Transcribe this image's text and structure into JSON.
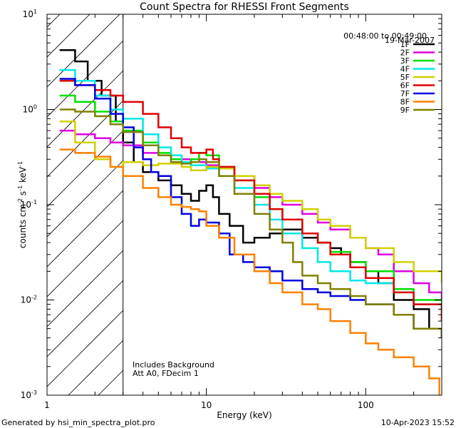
{
  "chart_data": {
    "type": "line",
    "title": "Count Spectra for RHESSI Front Segments",
    "xlabel": "Energy (keV)",
    "ylabel_parts": {
      "base": "counts cm",
      "exp1": "-2",
      "mid": " s",
      "exp2": "-1",
      "unit": " keV",
      "exp3": "-1"
    },
    "xscale": "log",
    "yscale": "log",
    "xlim": [
      1,
      300
    ],
    "ylim": [
      0.001,
      10
    ],
    "x_ticks": [
      {
        "value": 1,
        "label": "1"
      },
      {
        "value": 10,
        "label": "10"
      },
      {
        "value": 100,
        "label": "100"
      }
    ],
    "y_ticks": [
      {
        "value": 0.001,
        "base": "10",
        "exp": "-3"
      },
      {
        "value": 0.01,
        "base": "10",
        "exp": "-2"
      },
      {
        "value": 0.1,
        "base": "10",
        "exp": "-1"
      },
      {
        "value": 1,
        "base": "10",
        "exp": "0"
      },
      {
        "value": 10,
        "base": "10",
        "exp": "1"
      }
    ],
    "date": "19-Mar-2007",
    "time_range": "00:48:00 to 00:49:00",
    "annotations": [
      "Includes Background",
      "Att A0, FDecim 1"
    ],
    "shaded_region_xmax": 3,
    "legend_position": "top-right",
    "series": [
      {
        "name": "1F",
        "color": "#000000",
        "points": [
          [
            1.2,
            4.2
          ],
          [
            1.5,
            3.2
          ],
          [
            1.8,
            2.0
          ],
          [
            2.2,
            1.4
          ],
          [
            2.7,
            0.75
          ],
          [
            3.0,
            0.45
          ],
          [
            3.5,
            0.28
          ],
          [
            4,
            0.22
          ],
          [
            5,
            0.18
          ],
          [
            6,
            0.16
          ],
          [
            7,
            0.13
          ],
          [
            8,
            0.11
          ],
          [
            9,
            0.14
          ],
          [
            10,
            0.16
          ],
          [
            11,
            0.12
          ],
          [
            12,
            0.08
          ],
          [
            14,
            0.06
          ],
          [
            17,
            0.04
          ],
          [
            20,
            0.045
          ],
          [
            25,
            0.05
          ],
          [
            30,
            0.055
          ],
          [
            40,
            0.045
          ],
          [
            50,
            0.04
          ],
          [
            60,
            0.035
          ],
          [
            70,
            0.03
          ],
          [
            80,
            0.025
          ],
          [
            100,
            0.02
          ],
          [
            120,
            0.015
          ],
          [
            150,
            0.01
          ],
          [
            200,
            0.008
          ],
          [
            250,
            0.005
          ],
          [
            300,
            0.004
          ]
        ]
      },
      {
        "name": "2F",
        "color": "#e000e0",
        "points": [
          [
            1.2,
            0.6
          ],
          [
            1.5,
            0.55
          ],
          [
            2,
            0.5
          ],
          [
            2.5,
            0.45
          ],
          [
            3,
            0.42
          ],
          [
            4,
            0.35
          ],
          [
            5,
            0.33
          ],
          [
            6,
            0.3
          ],
          [
            7,
            0.3
          ],
          [
            8,
            0.28
          ],
          [
            10,
            0.26
          ],
          [
            12,
            0.24
          ],
          [
            15,
            0.2
          ],
          [
            20,
            0.15
          ],
          [
            25,
            0.12
          ],
          [
            30,
            0.1
          ],
          [
            40,
            0.08
          ],
          [
            50,
            0.065
          ],
          [
            60,
            0.055
          ],
          [
            80,
            0.045
          ],
          [
            100,
            0.035
          ],
          [
            120,
            0.03
          ],
          [
            150,
            0.02
          ],
          [
            200,
            0.015
          ],
          [
            250,
            0.012
          ],
          [
            300,
            0.01
          ]
        ]
      },
      {
        "name": "3F",
        "color": "#00e000",
        "points": [
          [
            1.2,
            1.4
          ],
          [
            1.5,
            1.2
          ],
          [
            2,
            0.95
          ],
          [
            2.5,
            0.75
          ],
          [
            3,
            0.6
          ],
          [
            4,
            0.45
          ],
          [
            5,
            0.35
          ],
          [
            6,
            0.3
          ],
          [
            7,
            0.28
          ],
          [
            8,
            0.3
          ],
          [
            9,
            0.35
          ],
          [
            10,
            0.33
          ],
          [
            12,
            0.25
          ],
          [
            15,
            0.18
          ],
          [
            20,
            0.12
          ],
          [
            25,
            0.09
          ],
          [
            30,
            0.07
          ],
          [
            40,
            0.05
          ],
          [
            50,
            0.04
          ],
          [
            60,
            0.032
          ],
          [
            80,
            0.025
          ],
          [
            100,
            0.02
          ],
          [
            150,
            0.013
          ],
          [
            200,
            0.01
          ],
          [
            300,
            0.006
          ]
        ]
      },
      {
        "name": "4F",
        "color": "#00e8e8",
        "points": [
          [
            1.2,
            2.6
          ],
          [
            1.5,
            2.0
          ],
          [
            2,
            1.4
          ],
          [
            2.5,
            1.0
          ],
          [
            3,
            0.8
          ],
          [
            4,
            0.55
          ],
          [
            5,
            0.4
          ],
          [
            6,
            0.33
          ],
          [
            7,
            0.28
          ],
          [
            8,
            0.26
          ],
          [
            10,
            0.24
          ],
          [
            12,
            0.2
          ],
          [
            15,
            0.15
          ],
          [
            20,
            0.1
          ],
          [
            25,
            0.07
          ],
          [
            30,
            0.05
          ],
          [
            40,
            0.035
          ],
          [
            50,
            0.025
          ],
          [
            60,
            0.02
          ],
          [
            80,
            0.016
          ],
          [
            100,
            0.015
          ],
          [
            150,
            0.012
          ],
          [
            200,
            0.009
          ],
          [
            300,
            0.006
          ]
        ]
      },
      {
        "name": "5F",
        "color": "#d0d000",
        "points": [
          [
            1.2,
            0.75
          ],
          [
            1.5,
            0.45
          ],
          [
            2,
            0.3
          ],
          [
            2.5,
            0.25
          ],
          [
            3,
            0.28
          ],
          [
            4,
            0.26
          ],
          [
            5,
            0.27
          ],
          [
            6,
            0.27
          ],
          [
            7,
            0.25
          ],
          [
            8,
            0.23
          ],
          [
            10,
            0.25
          ],
          [
            12,
            0.24
          ],
          [
            15,
            0.2
          ],
          [
            20,
            0.16
          ],
          [
            25,
            0.13
          ],
          [
            30,
            0.11
          ],
          [
            40,
            0.09
          ],
          [
            50,
            0.07
          ],
          [
            60,
            0.06
          ],
          [
            80,
            0.045
          ],
          [
            100,
            0.035
          ],
          [
            150,
            0.025
          ],
          [
            200,
            0.02
          ],
          [
            300,
            0.015
          ]
        ]
      },
      {
        "name": "6F",
        "color": "#e00000",
        "points": [
          [
            1.2,
            2.0
          ],
          [
            1.5,
            1.8
          ],
          [
            2,
            1.6
          ],
          [
            2.5,
            1.4
          ],
          [
            3,
            1.2
          ],
          [
            4,
            0.9
          ],
          [
            5,
            0.65
          ],
          [
            6,
            0.5
          ],
          [
            7,
            0.4
          ],
          [
            8,
            0.35
          ],
          [
            9,
            0.35
          ],
          [
            10,
            0.38
          ],
          [
            11,
            0.3
          ],
          [
            12,
            0.25
          ],
          [
            15,
            0.18
          ],
          [
            20,
            0.13
          ],
          [
            25,
            0.09
          ],
          [
            30,
            0.07
          ],
          [
            40,
            0.05
          ],
          [
            50,
            0.04
          ],
          [
            60,
            0.03
          ],
          [
            80,
            0.022
          ],
          [
            100,
            0.017
          ],
          [
            150,
            0.012
          ],
          [
            200,
            0.009
          ],
          [
            300,
            0.006
          ]
        ]
      },
      {
        "name": "7F",
        "color": "#0000e0",
        "points": [
          [
            1.2,
            2.1
          ],
          [
            1.5,
            1.8
          ],
          [
            2,
            1.3
          ],
          [
            2.5,
            0.9
          ],
          [
            3,
            0.65
          ],
          [
            3.5,
            0.4
          ],
          [
            4,
            0.3
          ],
          [
            4.5,
            0.22
          ],
          [
            5,
            0.2
          ],
          [
            6,
            0.12
          ],
          [
            7,
            0.08
          ],
          [
            8,
            0.06
          ],
          [
            9,
            0.07
          ],
          [
            10,
            0.065
          ],
          [
            12,
            0.05
          ],
          [
            14,
            0.03
          ],
          [
            17,
            0.025
          ],
          [
            20,
            0.022
          ],
          [
            25,
            0.02
          ],
          [
            30,
            0.016
          ],
          [
            40,
            0.013
          ],
          [
            50,
            0.012
          ],
          [
            60,
            0.011
          ],
          [
            80,
            0.01
          ],
          [
            100,
            0.009
          ],
          [
            150,
            0.007
          ],
          [
            200,
            0.005
          ],
          [
            300,
            0.004
          ]
        ]
      },
      {
        "name": "8F",
        "color": "#ff8000",
        "points": [
          [
            1.2,
            0.38
          ],
          [
            1.5,
            0.35
          ],
          [
            2,
            0.32
          ],
          [
            2.5,
            0.25
          ],
          [
            3,
            0.2
          ],
          [
            4,
            0.15
          ],
          [
            5,
            0.12
          ],
          [
            6,
            0.1
          ],
          [
            7,
            0.095
          ],
          [
            8,
            0.09
          ],
          [
            9,
            0.085
          ],
          [
            10,
            0.06
          ],
          [
            12,
            0.045
          ],
          [
            15,
            0.03
          ],
          [
            20,
            0.02
          ],
          [
            25,
            0.015
          ],
          [
            30,
            0.012
          ],
          [
            40,
            0.009
          ],
          [
            50,
            0.008
          ],
          [
            60,
            0.006
          ],
          [
            80,
            0.0045
          ],
          [
            100,
            0.0035
          ],
          [
            120,
            0.003
          ],
          [
            150,
            0.0025
          ],
          [
            200,
            0.002
          ],
          [
            250,
            0.0015
          ],
          [
            290,
            0.001
          ]
        ]
      },
      {
        "name": "9F",
        "color": "#808000",
        "points": [
          [
            1.2,
            1.0
          ],
          [
            1.5,
            0.95
          ],
          [
            2,
            0.85
          ],
          [
            2.5,
            0.7
          ],
          [
            3,
            0.58
          ],
          [
            4,
            0.42
          ],
          [
            5,
            0.33
          ],
          [
            6,
            0.28
          ],
          [
            7,
            0.27
          ],
          [
            8,
            0.28
          ],
          [
            9,
            0.3
          ],
          [
            10,
            0.28
          ],
          [
            12,
            0.2
          ],
          [
            15,
            0.13
          ],
          [
            20,
            0.08
          ],
          [
            25,
            0.055
          ],
          [
            30,
            0.04
          ],
          [
            35,
            0.025
          ],
          [
            40,
            0.018
          ],
          [
            50,
            0.015
          ],
          [
            60,
            0.013
          ],
          [
            80,
            0.011
          ],
          [
            100,
            0.009
          ],
          [
            150,
            0.007
          ],
          [
            200,
            0.005
          ],
          [
            300,
            0.004
          ]
        ]
      }
    ]
  },
  "footer": {
    "generator": "Generated by hsi_min_spectra_plot.pro",
    "timestamp": "10-Apr-2023 15:52"
  }
}
